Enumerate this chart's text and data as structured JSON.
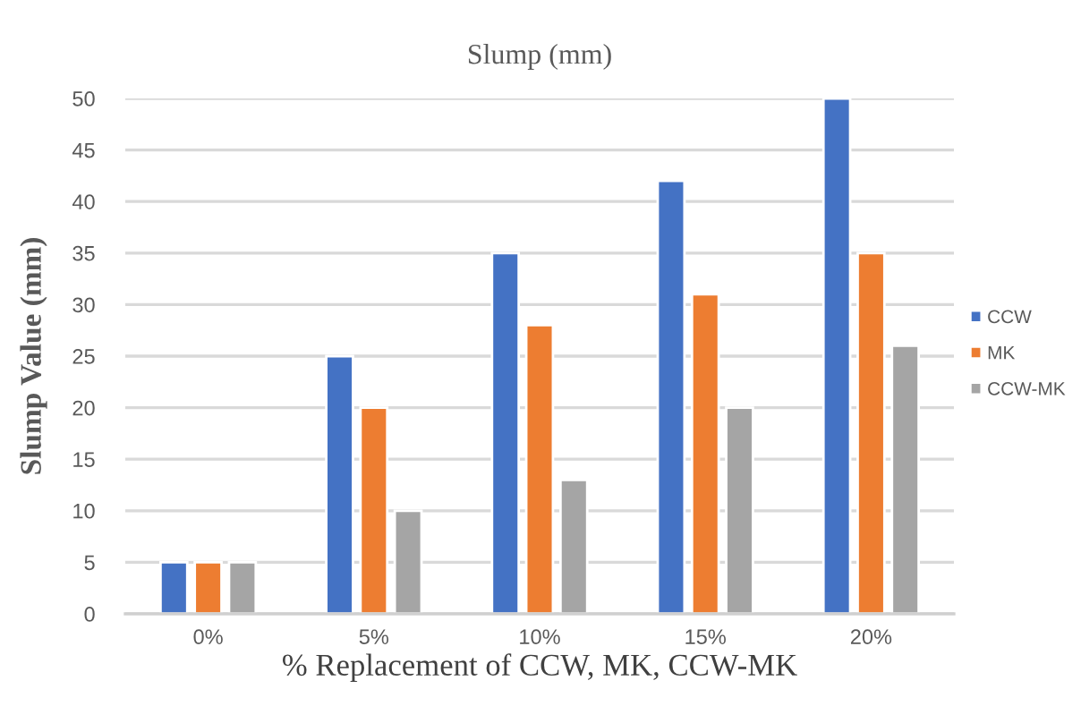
{
  "chart_data": {
    "type": "bar",
    "title": "Slump (mm)",
    "xlabel": "% Replacement of CCW, MK, CCW-MK",
    "ylabel": "Slump Value (mm)",
    "categories": [
      "0%",
      "5%",
      "10%",
      "15%",
      "20%"
    ],
    "series": [
      {
        "name": "CCW",
        "color": "#4472c4",
        "values": [
          5,
          25,
          35,
          42,
          50
        ]
      },
      {
        "name": "MK",
        "color": "#ed7d31",
        "values": [
          5,
          20,
          28,
          31,
          35
        ]
      },
      {
        "name": "CCW-MK",
        "color": "#a5a5a5",
        "values": [
          5,
          10,
          13,
          20,
          26
        ]
      }
    ],
    "ylim": [
      0,
      50
    ],
    "yticks": [
      0,
      5,
      10,
      15,
      20,
      25,
      30,
      35,
      40,
      45,
      50
    ],
    "grid": "y",
    "legend": "right"
  }
}
